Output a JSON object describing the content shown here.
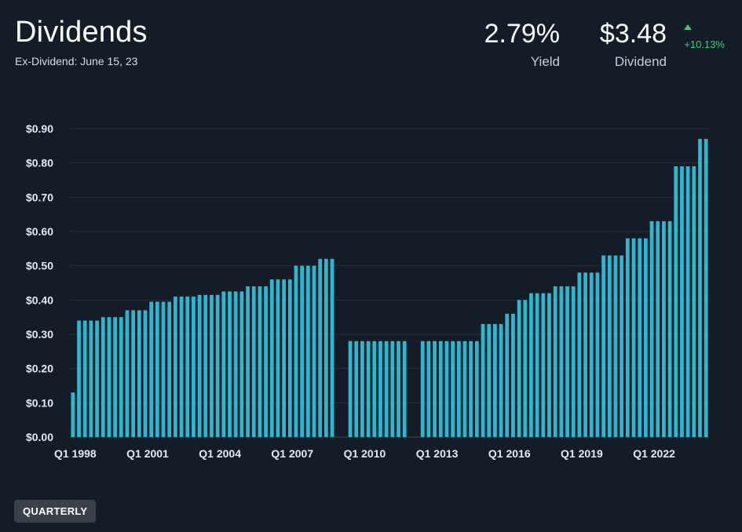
{
  "header": {
    "title": "Dividends",
    "ex_dividend": "Ex-Dividend: June 15, 23",
    "yield_value": "2.79%",
    "yield_label": "Yield",
    "dividend_value": "$3.48",
    "dividend_label": "Dividend",
    "change_pct": "+10.13%"
  },
  "colors": {
    "background": "#141c27",
    "bar": "#2bb9d1",
    "positive": "#2fd47a",
    "grid": "#26303d"
  },
  "controls": {
    "period_button": "QUARTERLY"
  },
  "chart_data": {
    "type": "bar",
    "xlabel": "",
    "ylabel": "",
    "ylim": [
      0,
      0.9
    ],
    "yticks": [
      "$0.00",
      "$0.10",
      "$0.20",
      "$0.30",
      "$0.40",
      "$0.50",
      "$0.60",
      "$0.70",
      "$0.80",
      "$0.90"
    ],
    "xtick_labels": [
      "Q1 1998",
      "Q1 2001",
      "Q1 2004",
      "Q1 2007",
      "Q1 2010",
      "Q1 2013",
      "Q1 2016",
      "Q1 2019",
      "Q1 2022"
    ],
    "grid": true,
    "values": [
      0.13,
      0.34,
      0.34,
      0.34,
      0.34,
      0.35,
      0.35,
      0.35,
      0.35,
      0.37,
      0.37,
      0.37,
      0.37,
      0.395,
      0.395,
      0.395,
      0.395,
      0.41,
      0.41,
      0.41,
      0.41,
      0.415,
      0.415,
      0.415,
      0.415,
      0.425,
      0.425,
      0.425,
      0.425,
      0.44,
      0.44,
      0.44,
      0.44,
      0.46,
      0.46,
      0.46,
      0.46,
      0.5,
      0.5,
      0.5,
      0.5,
      0.52,
      0.52,
      0.52,
      null,
      null,
      0.28,
      0.28,
      0.28,
      0.28,
      0.28,
      0.28,
      0.28,
      0.28,
      0.28,
      0.28,
      null,
      null,
      0.28,
      0.28,
      0.28,
      0.28,
      0.28,
      0.28,
      0.28,
      0.28,
      0.28,
      0.28,
      0.33,
      0.33,
      0.33,
      0.33,
      0.36,
      0.36,
      0.4,
      0.4,
      0.42,
      0.42,
      0.42,
      0.42,
      0.44,
      0.44,
      0.44,
      0.44,
      0.48,
      0.48,
      0.48,
      0.48,
      0.53,
      0.53,
      0.53,
      0.53,
      0.58,
      0.58,
      0.58,
      0.58,
      0.63,
      0.63,
      0.63,
      0.63,
      0.79,
      0.79,
      0.79,
      0.79,
      0.87,
      0.87
    ]
  }
}
